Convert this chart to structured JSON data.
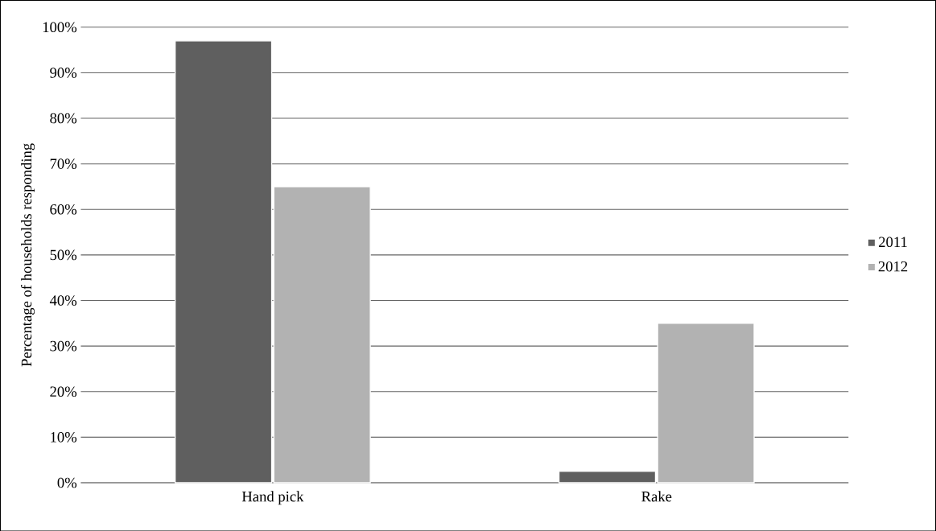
{
  "chart_data": {
    "type": "bar",
    "ylabel": "Percentage of households responding",
    "categories": [
      "Hand pick",
      "Rake"
    ],
    "series": [
      {
        "name": "2011",
        "color": "#5f5f5f",
        "values": [
          97,
          2.5
        ]
      },
      {
        "name": "2012",
        "color": "#b2b2b2",
        "values": [
          65,
          35
        ]
      }
    ],
    "ylim": [
      0,
      100
    ],
    "yticks": [
      {
        "value": 0,
        "label": "0%"
      },
      {
        "value": 10,
        "label": "10%"
      },
      {
        "value": 20,
        "label": "20%"
      },
      {
        "value": 30,
        "label": "30%"
      },
      {
        "value": 40,
        "label": "40%"
      },
      {
        "value": 50,
        "label": "50%"
      },
      {
        "value": 60,
        "label": "60%"
      },
      {
        "value": 70,
        "label": "70%"
      },
      {
        "value": 80,
        "label": "80%"
      },
      {
        "value": 90,
        "label": "90%"
      },
      {
        "value": 100,
        "label": "100%"
      }
    ],
    "grid": "y",
    "legend": "right"
  }
}
